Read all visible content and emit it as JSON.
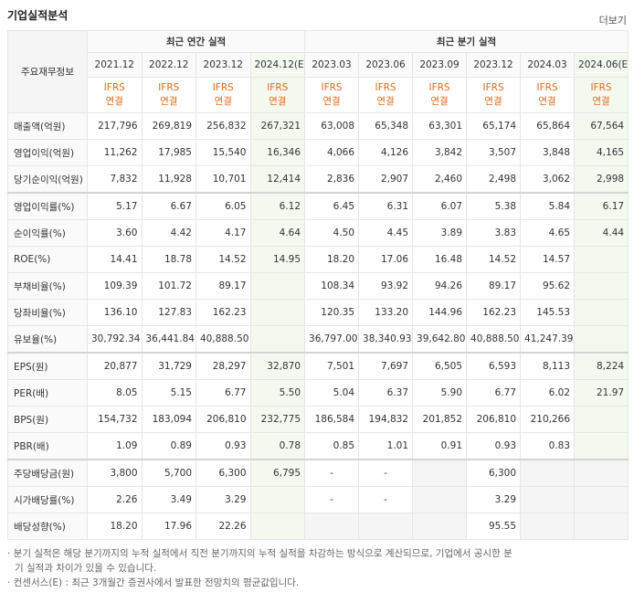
{
  "header": {
    "title": "기업실적분석",
    "more": "더보기"
  },
  "table": {
    "corner": "주요재무정보",
    "groups": [
      "최근 연간 실적",
      "최근 분기 실적"
    ],
    "periods": [
      "2021.12",
      "2022.12",
      "2023.12",
      "2024.12(E)",
      "2023.03",
      "2023.06",
      "2023.09",
      "2023.12",
      "2024.03",
      "2024.06(E)"
    ],
    "basis": [
      [
        "IFRS",
        "연결"
      ],
      [
        "IFRS",
        "연결"
      ],
      [
        "IFRS",
        "연결"
      ],
      [
        "IFRS",
        "연결"
      ],
      [
        "IFRS",
        "연결"
      ],
      [
        "IFRS",
        "연결"
      ],
      [
        "IFRS",
        "연결"
      ],
      [
        "IFRS",
        "연결"
      ],
      [
        "IFRS",
        "연결"
      ],
      [
        "IFRS",
        "연결"
      ]
    ],
    "rows": [
      {
        "label": "매출액(억원)",
        "values": [
          "217,796",
          "269,819",
          "256,832",
          "267,321",
          "63,008",
          "65,348",
          "63,301",
          "65,174",
          "65,864",
          "67,564"
        ]
      },
      {
        "label": "영업이익(억원)",
        "values": [
          "11,262",
          "17,985",
          "15,540",
          "16,346",
          "4,066",
          "4,126",
          "3,842",
          "3,507",
          "3,848",
          "4,165"
        ]
      },
      {
        "label": "당기순이익(억원)",
        "values": [
          "7,832",
          "11,928",
          "10,701",
          "12,414",
          "2,836",
          "2,907",
          "2,460",
          "2,498",
          "3,062",
          "2,998"
        ]
      },
      {
        "label": "영업이익률(%)",
        "values": [
          "5.17",
          "6.67",
          "6.05",
          "6.12",
          "6.45",
          "6.31",
          "6.07",
          "5.38",
          "5.84",
          "6.17"
        ]
      },
      {
        "label": "순이익률(%)",
        "values": [
          "3.60",
          "4.42",
          "4.17",
          "4.64",
          "4.50",
          "4.45",
          "3.89",
          "3.83",
          "4.65",
          "4.44"
        ]
      },
      {
        "label": "ROE(%)",
        "values": [
          "14.41",
          "18.78",
          "14.52",
          "14.95",
          "18.20",
          "17.06",
          "16.48",
          "14.52",
          "14.57",
          null
        ]
      },
      {
        "label": "부채비율(%)",
        "values": [
          "109.39",
          "101.72",
          "89.17",
          null,
          "108.34",
          "93.92",
          "94.26",
          "89.17",
          "95.62",
          null
        ]
      },
      {
        "label": "당좌비율(%)",
        "values": [
          "136.10",
          "127.83",
          "162.23",
          null,
          "120.35",
          "133.20",
          "144.96",
          "162.23",
          "145.53",
          null
        ]
      },
      {
        "label": "유보율(%)",
        "values": [
          "30,792.34",
          "36,441.84",
          "40,888.50",
          null,
          "36,797.00",
          "38,340.93",
          "39,642.80",
          "40,888.50",
          "41,247.39",
          null
        ]
      },
      {
        "label": "EPS(원)",
        "values": [
          "20,877",
          "31,729",
          "28,297",
          "32,870",
          "7,501",
          "7,697",
          "6,505",
          "6,593",
          "8,113",
          "8,224"
        ]
      },
      {
        "label": "PER(배)",
        "values": [
          "8.05",
          "5.15",
          "6.77",
          "5.50",
          "5.04",
          "6.37",
          "5.90",
          "6.77",
          "6.02",
          "21.97"
        ]
      },
      {
        "label": "BPS(원)",
        "values": [
          "154,732",
          "183,094",
          "206,810",
          "232,775",
          "186,584",
          "194,832",
          "201,852",
          "206,810",
          "210,266",
          null
        ]
      },
      {
        "label": "PBR(배)",
        "values": [
          "1.09",
          "0.89",
          "0.93",
          "0.78",
          "0.85",
          "1.01",
          "0.91",
          "0.93",
          "0.83",
          null
        ]
      },
      {
        "label": "주당배당금(원)",
        "values": [
          "3,800",
          "5,700",
          "6,300",
          "6,795",
          "-",
          "-",
          null,
          "6,300",
          null,
          null
        ]
      },
      {
        "label": "시가배당률(%)",
        "values": [
          "2.26",
          "3.49",
          "3.29",
          null,
          "-",
          "-",
          null,
          "3.29",
          null,
          null
        ]
      },
      {
        "label": "배당성향(%)",
        "values": [
          "18.20",
          "17.96",
          "22.26",
          null,
          null,
          null,
          null,
          "95.55",
          null,
          null
        ]
      }
    ]
  },
  "notes": [
    "분기 실적은 해당 분기까지의 누적 실적에서 직전 분기까지의 누적 실적을 차감하는 방식으로 계산되므로, 기업에서 공시한 분기 실적과 차이가 있을 수 있습니다.",
    "컨센서스(E) : 최근 3개월간 증권사에서 발표한 전망치의 평균값입니다."
  ]
}
